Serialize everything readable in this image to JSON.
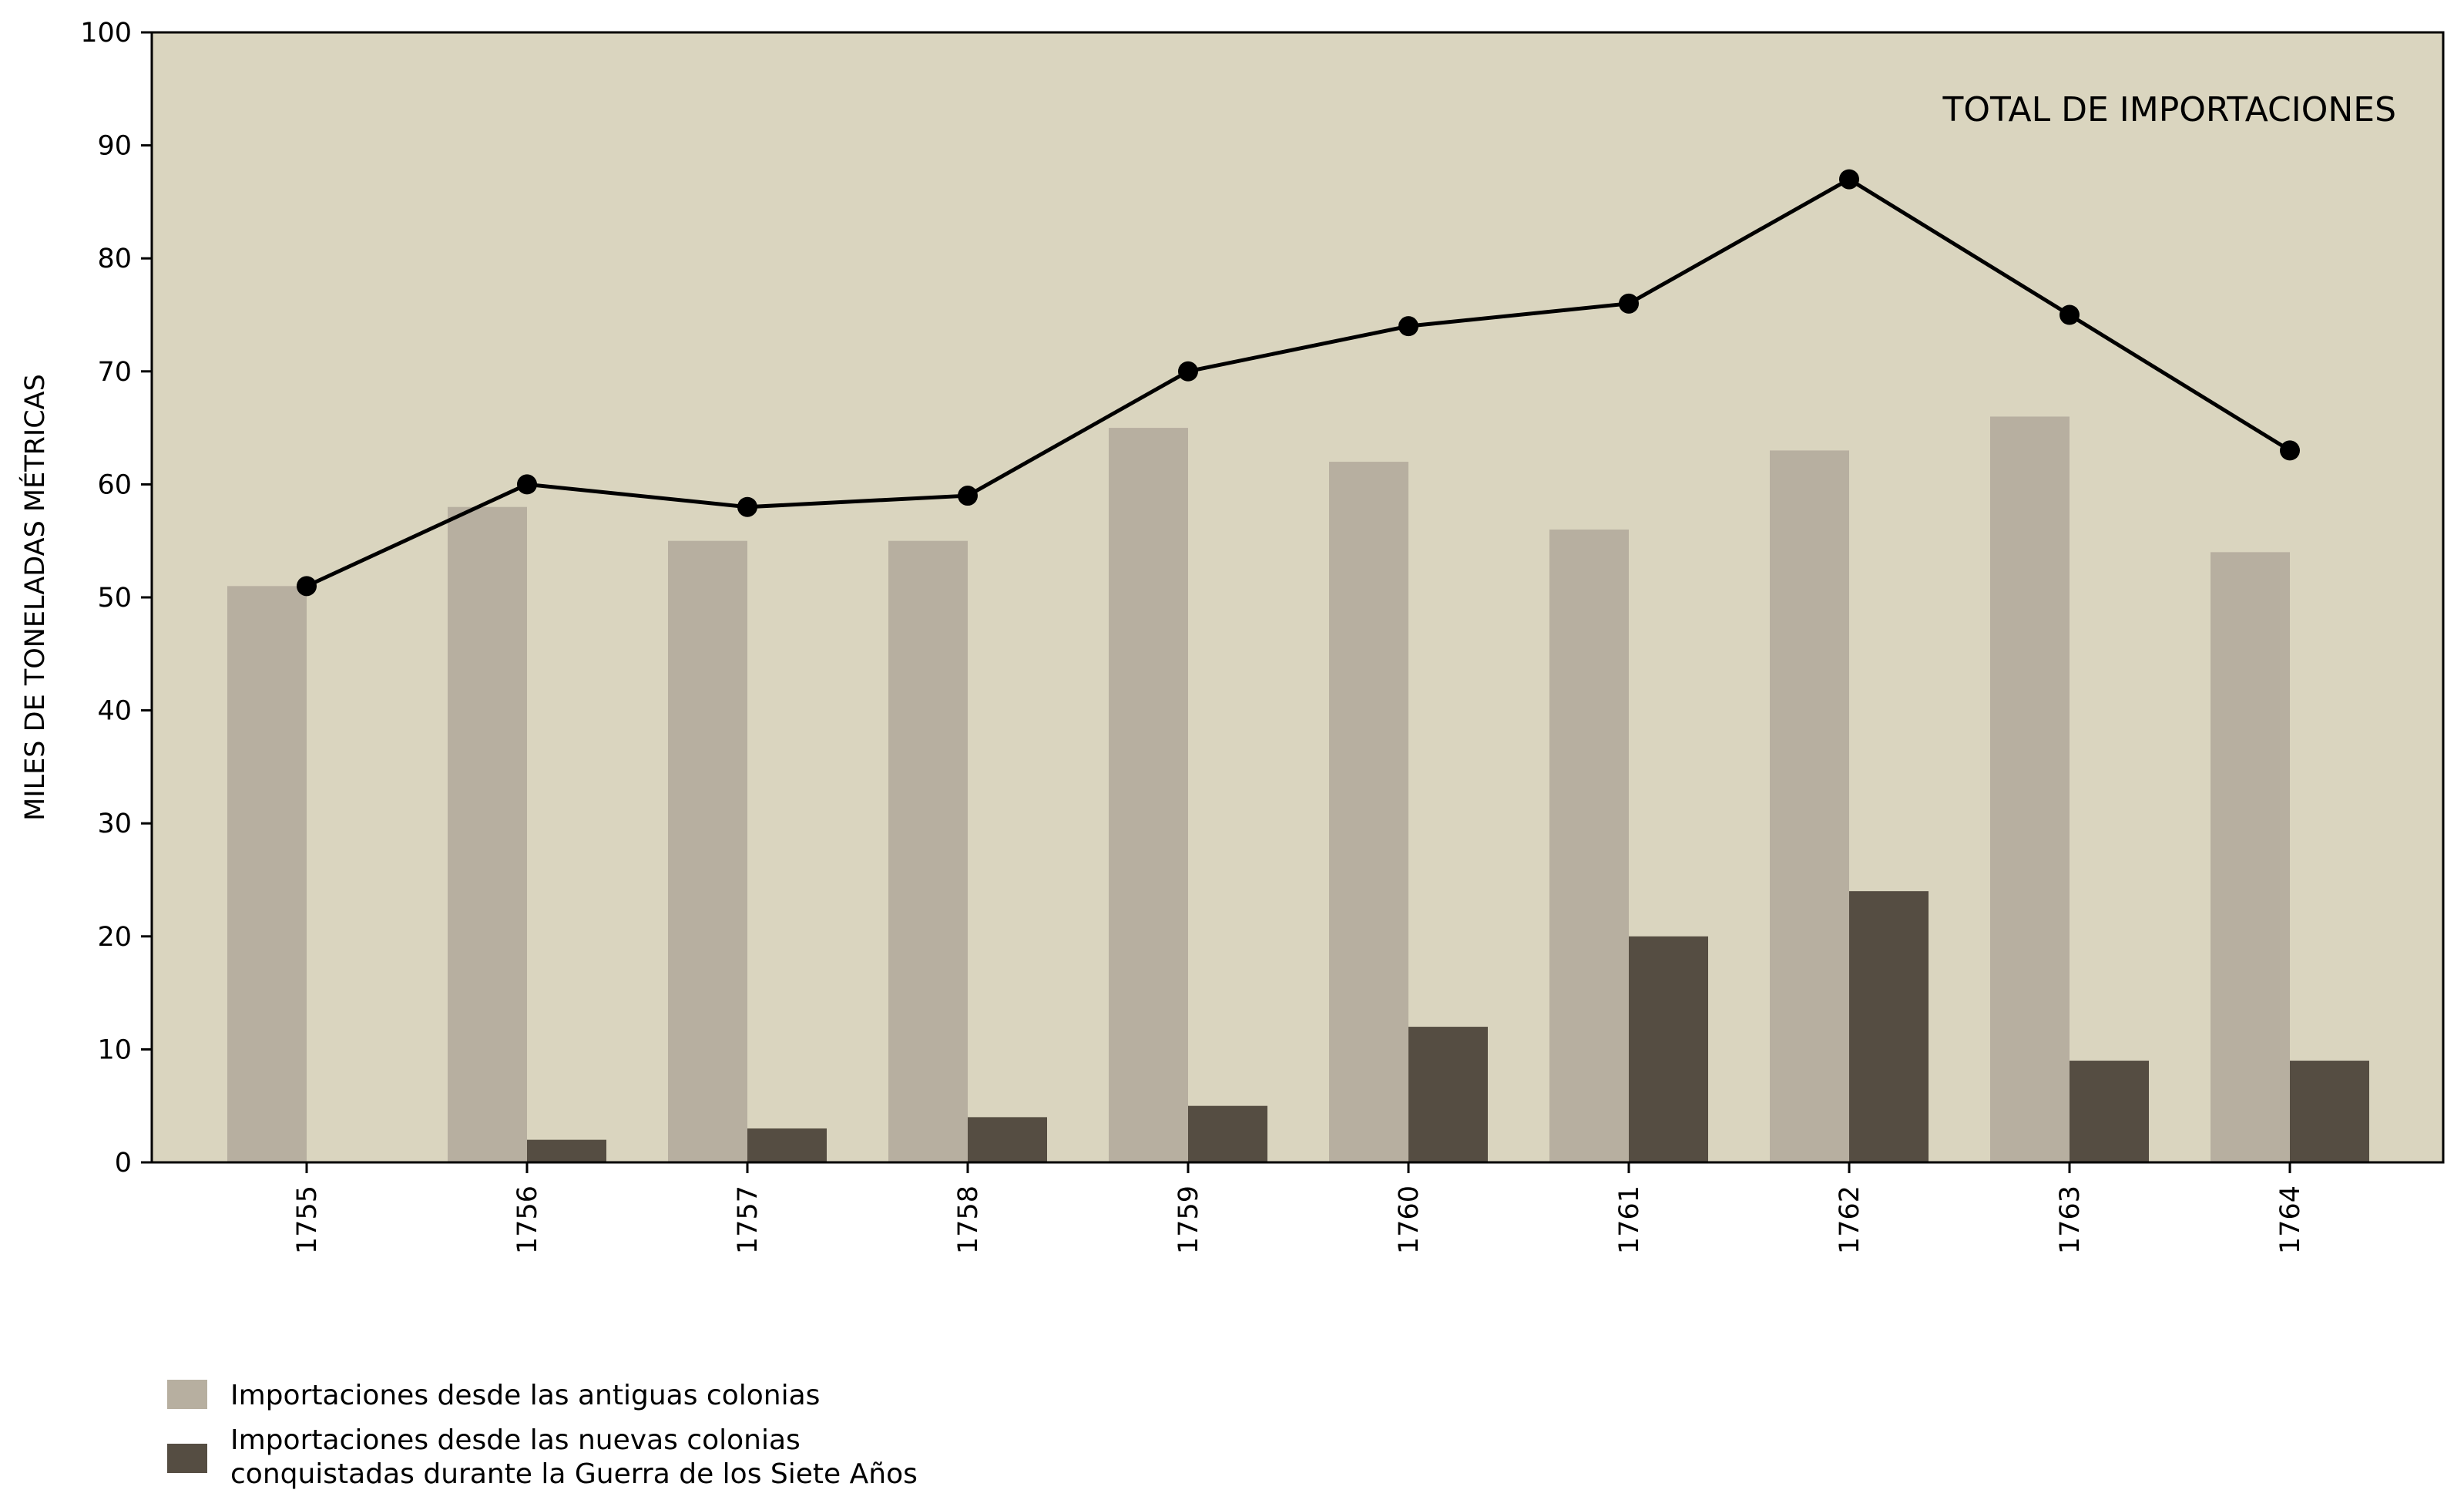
{
  "chart_data": {
    "type": "bar",
    "categories": [
      "1755",
      "1756",
      "1757",
      "1758",
      "1759",
      "1760",
      "1761",
      "1762",
      "1763",
      "1764"
    ],
    "series": [
      {
        "name": "Importaciones desde las antiguas colonias",
        "type": "bar",
        "color": "#b7afa0",
        "values": [
          51,
          58,
          55,
          55,
          65,
          62,
          56,
          63,
          66,
          54
        ]
      },
      {
        "name": "Importaciones desde las nuevas colonias conquistadas durante la Guerra de los Siete Años",
        "type": "bar",
        "color": "#554d42",
        "values": [
          0,
          2,
          3,
          4,
          5,
          12,
          20,
          24,
          9,
          9
        ]
      },
      {
        "name": "TOTAL DE IMPORTACIONES",
        "type": "line",
        "color": "#000000",
        "values": [
          51,
          60,
          58,
          59,
          70,
          74,
          76,
          87,
          75,
          63
        ]
      }
    ],
    "title": "",
    "xlabel": "",
    "ylabel": "MILES DE TONELADAS MÉTRICAS",
    "ylim": [
      0,
      100
    ],
    "yticks": [
      0,
      10,
      20,
      30,
      40,
      50,
      60,
      70,
      80,
      90,
      100
    ],
    "annotation": "TOTAL DE IMPORTACIONES",
    "grid": false,
    "legend_position": "bottom-left",
    "legend": {
      "old_label": "Importaciones desde las antiguas colonias",
      "new_label_line1": "Importaciones desde las nuevas colonias",
      "new_label_line2": "conquistadas durante la Guerra de los Siete Años"
    },
    "background_color": "#dad5bf"
  }
}
